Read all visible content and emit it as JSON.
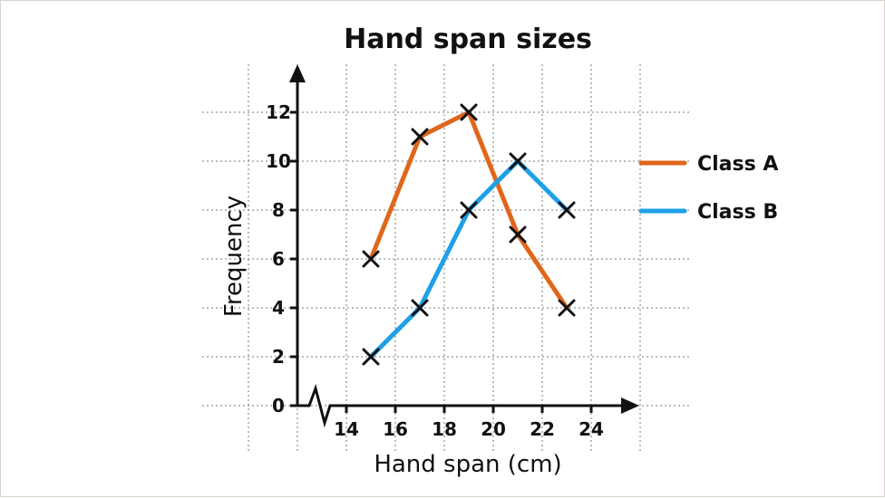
{
  "chart_data": {
    "type": "line",
    "title": "Hand span sizes",
    "xlabel": "Hand span (cm)",
    "ylabel": "Frequency",
    "x_ticks": [
      "14",
      "16",
      "18",
      "20",
      "22",
      "24"
    ],
    "y_ticks": [
      "0",
      "2",
      "4",
      "6",
      "8",
      "10",
      "12"
    ],
    "xlim": [
      12,
      26
    ],
    "ylim": [
      0,
      12
    ],
    "x_axis_break": true,
    "grid": true,
    "legend_position": "right",
    "x": [
      15,
      17,
      19,
      21,
      23
    ],
    "series": [
      {
        "name": "Class A",
        "values": [
          6,
          11,
          12,
          7,
          4
        ],
        "color": "#e0661c"
      },
      {
        "name": "Class B",
        "values": [
          2,
          4,
          8,
          10,
          8
        ],
        "color": "#1ea0e6"
      }
    ],
    "marker": "cross",
    "colors": {
      "grid": "#7a7a7a",
      "axis": "#111111",
      "marker": "#111111"
    }
  }
}
